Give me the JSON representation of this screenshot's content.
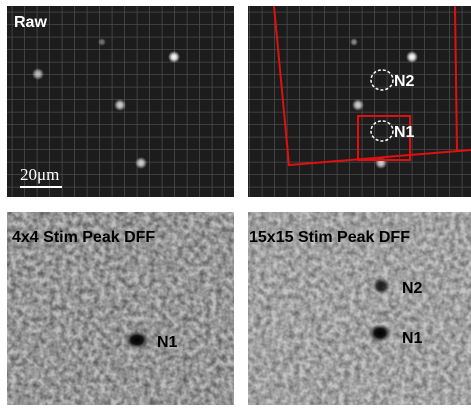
{
  "panels": [
    {
      "title": "Raw",
      "scale_bar": "20μm"
    },
    {
      "labels": [
        "N2",
        "N1"
      ]
    },
    {
      "title": "4x4 Stim Peak DFF",
      "labels": [
        "N1"
      ]
    },
    {
      "title": "15x15 Stim Peak DFF",
      "labels": [
        "N2",
        "N1"
      ]
    }
  ]
}
